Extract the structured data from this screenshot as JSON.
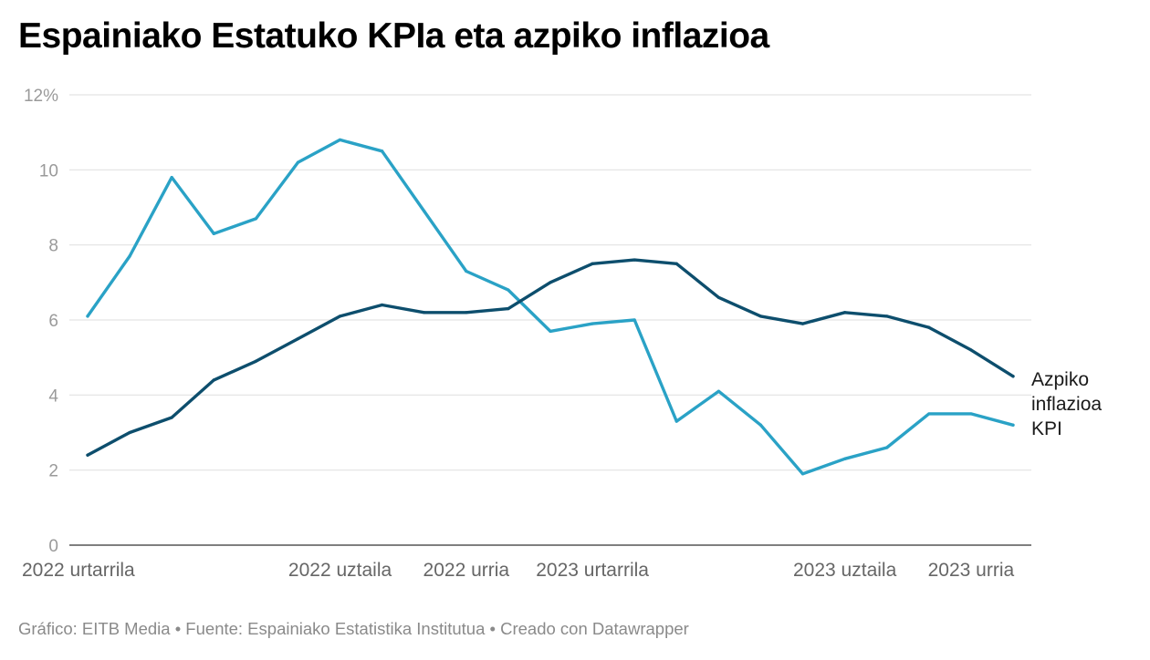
{
  "title": "Espainiako Estatuko KPIa eta azpiko inflazioa",
  "footer": {
    "text": "Gráfico: EITB Media • Fuente: Espainiako Estatistika Institutua • Creado con Datawrapper"
  },
  "chart_data": {
    "type": "line",
    "title": "Espainiako Estatuko KPIa eta azpiko inflazioa",
    "xlabel": "",
    "ylabel": "",
    "ylim": [
      0,
      12
    ],
    "y_ticks": [
      0,
      2,
      4,
      6,
      8,
      10,
      12
    ],
    "y_tick_labels": [
      "0",
      "2",
      "4",
      "6",
      "8",
      "10",
      "12%"
    ],
    "grid": true,
    "x": [
      "2022-01",
      "2022-02",
      "2022-03",
      "2022-04",
      "2022-05",
      "2022-06",
      "2022-07",
      "2022-08",
      "2022-09",
      "2022-10",
      "2022-11",
      "2022-12",
      "2023-01",
      "2023-02",
      "2023-03",
      "2023-04",
      "2023-05",
      "2023-06",
      "2023-07",
      "2023-08",
      "2023-09",
      "2023-10",
      "2023-11"
    ],
    "x_tick_labels": [
      {
        "index": 0,
        "label": "2022 urtarrila"
      },
      {
        "index": 6,
        "label": "2022 uztaila"
      },
      {
        "index": 9,
        "label": "2022 urria"
      },
      {
        "index": 12,
        "label": "2023 urtarrila"
      },
      {
        "index": 18,
        "label": "2023 uztaila"
      },
      {
        "index": 21,
        "label": "2023 urria"
      }
    ],
    "series": [
      {
        "name": "KPI",
        "label_lines": [
          "KPI"
        ],
        "color": "#2aa2c6",
        "values": [
          6.1,
          7.7,
          9.8,
          8.3,
          8.7,
          10.2,
          10.8,
          10.5,
          8.9,
          7.3,
          6.8,
          5.7,
          5.9,
          6.0,
          3.3,
          4.1,
          3.2,
          1.9,
          2.3,
          2.6,
          3.5,
          3.5,
          3.2
        ]
      },
      {
        "name": "Azpiko inflazioa",
        "label_lines": [
          "Azpiko",
          "inflazioa"
        ],
        "color": "#0d4e6d",
        "values": [
          2.4,
          3.0,
          3.4,
          4.4,
          4.9,
          5.5,
          6.1,
          6.4,
          6.2,
          6.2,
          6.3,
          7.0,
          7.5,
          7.6,
          7.5,
          6.6,
          6.1,
          5.9,
          6.2,
          6.1,
          5.8,
          5.2,
          4.5
        ]
      }
    ]
  }
}
